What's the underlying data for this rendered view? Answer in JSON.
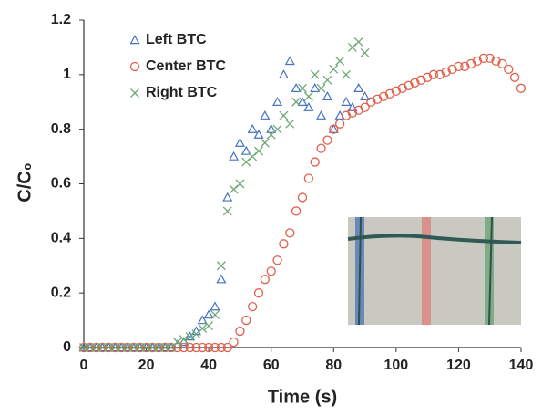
{
  "chart_data": {
    "type": "scatter",
    "x_label": "Time (s)",
    "y_label": "C/C₀",
    "xlim": [
      0,
      140
    ],
    "xticks": [
      0,
      20,
      40,
      60,
      80,
      100,
      120,
      140
    ],
    "ylim": [
      0,
      1.2
    ],
    "yticks": [
      0,
      0.2,
      0.4,
      0.6,
      0.8,
      1,
      1.2
    ],
    "legend": "upper left",
    "series": [
      {
        "name": "Left BTC",
        "color": "#4472c4",
        "marker": "triangle",
        "x": [
          0,
          2,
          4,
          6,
          8,
          10,
          12,
          14,
          16,
          18,
          20,
          22,
          24,
          26,
          28,
          30,
          32,
          34,
          36,
          38,
          40,
          42,
          44,
          46,
          48,
          50,
          52,
          54,
          56,
          58,
          60,
          62,
          64,
          66,
          68,
          70,
          72,
          74,
          76,
          78,
          80,
          82,
          84,
          86,
          88,
          90
        ],
        "values": [
          0,
          0,
          0,
          0,
          0,
          0,
          0,
          0,
          0,
          0,
          0,
          0,
          0,
          0,
          0,
          0.01,
          0.02,
          0.04,
          0.06,
          0.1,
          0.12,
          0.15,
          0.25,
          0.55,
          0.7,
          0.75,
          0.72,
          0.8,
          0.78,
          0.85,
          0.8,
          0.9,
          1.0,
          1.05,
          0.95,
          0.9,
          0.88,
          0.95,
          0.85,
          0.92,
          0.8,
          0.85,
          0.9,
          0.88,
          0.95,
          0.92
        ]
      },
      {
        "name": "Center BTC",
        "color": "#e0604c",
        "marker": "circle",
        "x": [
          0,
          2,
          4,
          6,
          8,
          10,
          12,
          14,
          16,
          18,
          20,
          22,
          24,
          26,
          28,
          30,
          32,
          34,
          36,
          38,
          40,
          42,
          44,
          46,
          48,
          50,
          52,
          54,
          56,
          58,
          60,
          62,
          64,
          66,
          68,
          70,
          72,
          74,
          76,
          78,
          80,
          82,
          84,
          86,
          88,
          90,
          92,
          94,
          96,
          98,
          100,
          102,
          104,
          106,
          108,
          110,
          112,
          114,
          116,
          118,
          120,
          122,
          124,
          126,
          128,
          130,
          132,
          134,
          136,
          138,
          140
        ],
        "values": [
          0,
          0,
          0,
          0,
          0,
          0,
          0,
          0,
          0,
          0,
          0,
          0,
          0,
          0,
          0,
          0,
          0,
          0,
          0,
          0,
          0,
          0,
          0,
          0,
          0.02,
          0.06,
          0.1,
          0.15,
          0.2,
          0.25,
          0.28,
          0.32,
          0.38,
          0.42,
          0.5,
          0.55,
          0.62,
          0.68,
          0.73,
          0.76,
          0.8,
          0.82,
          0.85,
          0.86,
          0.87,
          0.88,
          0.9,
          0.91,
          0.92,
          0.93,
          0.94,
          0.95,
          0.96,
          0.97,
          0.98,
          0.99,
          1.0,
          1.0,
          1.01,
          1.02,
          1.03,
          1.03,
          1.04,
          1.05,
          1.06,
          1.06,
          1.05,
          1.04,
          1.02,
          0.99,
          0.95
        ]
      },
      {
        "name": "Right BTC",
        "color": "#6fa874",
        "marker": "x",
        "x": [
          0,
          2,
          4,
          6,
          8,
          10,
          12,
          14,
          16,
          18,
          20,
          22,
          24,
          26,
          28,
          30,
          32,
          34,
          36,
          38,
          40,
          42,
          44,
          46,
          48,
          50,
          52,
          54,
          56,
          58,
          60,
          62,
          64,
          66,
          68,
          70,
          72,
          74,
          76,
          78,
          80,
          82,
          84,
          86,
          88,
          90
        ],
        "values": [
          0,
          0,
          0,
          0,
          0,
          0,
          0,
          0,
          0,
          0,
          0,
          0,
          0,
          0,
          0,
          0.02,
          0.03,
          0.04,
          0.05,
          0.07,
          0.08,
          0.12,
          0.3,
          0.5,
          0.58,
          0.6,
          0.68,
          0.7,
          0.72,
          0.75,
          0.78,
          0.8,
          0.85,
          0.82,
          0.9,
          0.95,
          0.92,
          1.0,
          0.95,
          0.98,
          1.02,
          1.05,
          1.0,
          1.1,
          1.12,
          1.08
        ]
      }
    ]
  }
}
